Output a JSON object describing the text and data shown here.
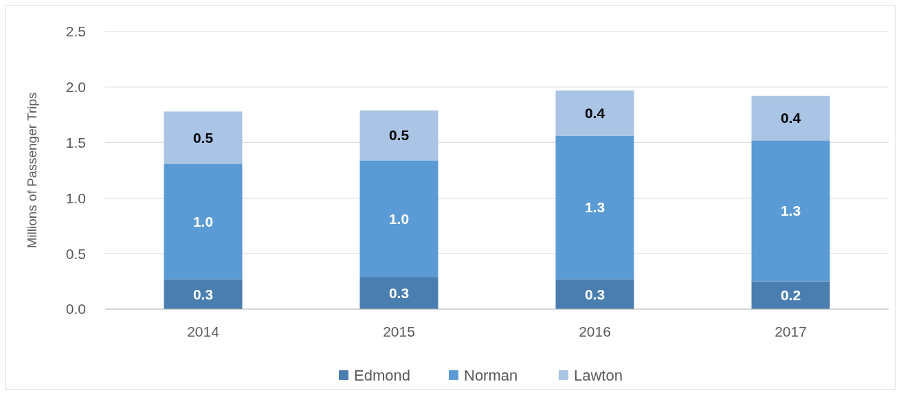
{
  "chart_data": {
    "type": "bar",
    "stacked": true,
    "categories": [
      "2014",
      "2015",
      "2016",
      "2017"
    ],
    "ylabel": "Millions of Passenger Trips",
    "ylim": [
      0,
      2.5
    ],
    "yticks": [
      {
        "value": 0,
        "label": "0.0"
      },
      {
        "value": 0.5,
        "label": "0.5"
      },
      {
        "value": 1,
        "label": "1.0"
      },
      {
        "value": 1.5,
        "label": "1.5"
      },
      {
        "value": 2,
        "label": "2.0"
      },
      {
        "value": 2.5,
        "label": "2.5"
      }
    ],
    "grid": "y",
    "legend": "bottom",
    "series": [
      {
        "name": "Edmond",
        "color": "#4a7eb0",
        "values": [
          0.27,
          0.29,
          0.27,
          0.25
        ],
        "value_labels": [
          "0.3",
          "0.3",
          "0.3",
          "0.2"
        ]
      },
      {
        "name": "Norman",
        "color": "#5b9bd5",
        "values": [
          1.04,
          1.05,
          1.29,
          1.27
        ],
        "value_labels": [
          "1.0",
          "1.0",
          "1.3",
          "1.3"
        ]
      },
      {
        "name": "Lawton",
        "color": "#a9c4e4",
        "values": [
          0.47,
          0.45,
          0.41,
          0.4
        ],
        "value_labels": [
          "0.5",
          "0.5",
          "0.4",
          "0.4"
        ]
      }
    ]
  }
}
